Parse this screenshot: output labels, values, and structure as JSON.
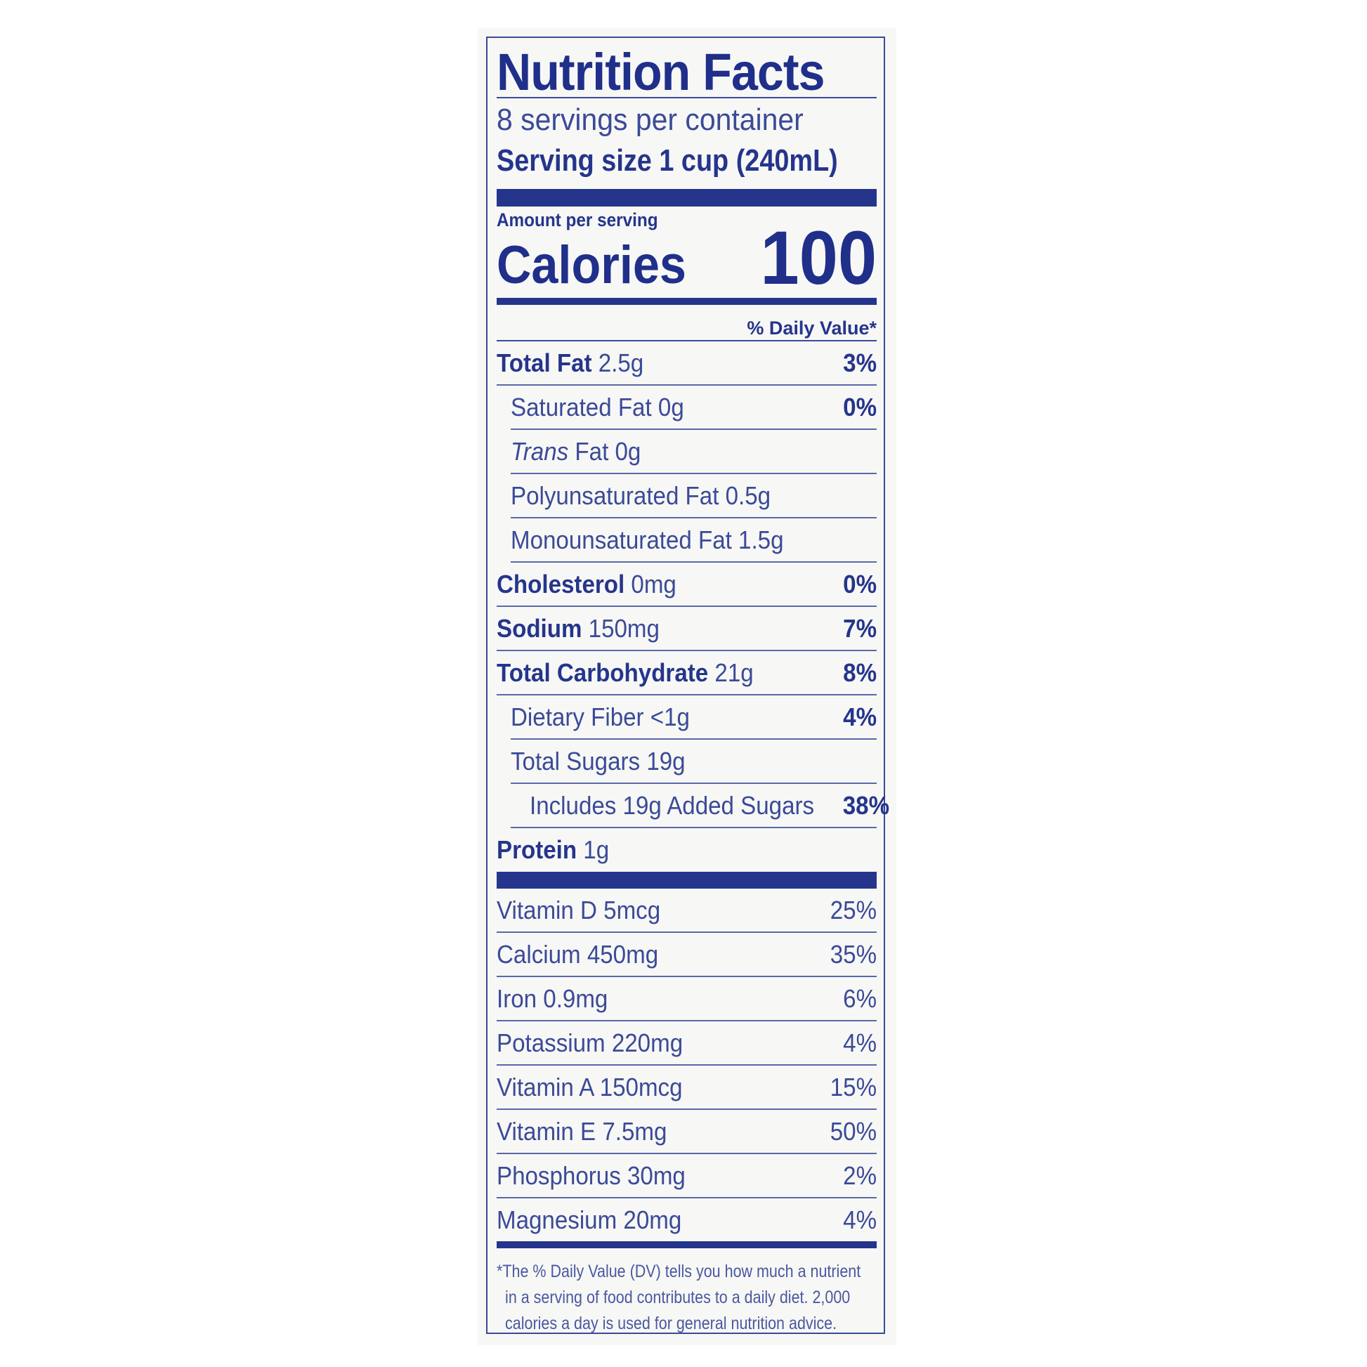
{
  "title": "Nutrition Facts",
  "servings_per_container": "8 servings per container",
  "serving_size": "Serving size 1 cup (240mL)",
  "amount_per_serving": "Amount per serving",
  "calories_label": "Calories",
  "calories_value": "100",
  "daily_value_header": "% Daily Value*",
  "nutrients": [
    {
      "name": "Total Fat",
      "amount": "2.5g",
      "dv": "3%",
      "bold": true,
      "indent": 0
    },
    {
      "name": "Saturated Fat",
      "amount": "0g",
      "dv": "0%",
      "bold": false,
      "indent": 1
    },
    {
      "name_italic": "Trans",
      "name": "Fat",
      "amount": "0g",
      "dv": "",
      "bold": false,
      "indent": 1
    },
    {
      "name": "Polyunsaturated Fat",
      "amount": "0.5g",
      "dv": "",
      "bold": false,
      "indent": 1
    },
    {
      "name": "Monounsaturated Fat",
      "amount": "1.5g",
      "dv": "",
      "bold": false,
      "indent": 1
    },
    {
      "name": "Cholesterol",
      "amount": "0mg",
      "dv": "0%",
      "bold": true,
      "indent": 0
    },
    {
      "name": "Sodium",
      "amount": "150mg",
      "dv": "7%",
      "bold": true,
      "indent": 0
    },
    {
      "name": "Total Carbohydrate",
      "amount": "21g",
      "dv": "8%",
      "bold": true,
      "indent": 0
    },
    {
      "name": "Dietary Fiber",
      "amount": "<1g",
      "dv": "4%",
      "bold": false,
      "indent": 1
    },
    {
      "name": "Total Sugars",
      "amount": "19g",
      "dv": "",
      "bold": false,
      "indent": 1
    },
    {
      "name": "Includes 19g Added Sugars",
      "amount": "",
      "dv": "38%",
      "bold": false,
      "indent": 2
    },
    {
      "name": "Protein",
      "amount": "1g",
      "dv": "",
      "bold": true,
      "indent": 0
    }
  ],
  "vitamins": [
    {
      "name": "Vitamin D",
      "amount": "5mcg",
      "dv": "25%"
    },
    {
      "name": "Calcium",
      "amount": "450mg",
      "dv": "35%"
    },
    {
      "name": "Iron",
      "amount": "0.9mg",
      "dv": "6%"
    },
    {
      "name": "Potassium",
      "amount": "220mg",
      "dv": "4%"
    },
    {
      "name": "Vitamin A",
      "amount": "150mcg",
      "dv": "15%"
    },
    {
      "name": "Vitamin E",
      "amount": "7.5mg",
      "dv": "50%"
    },
    {
      "name": "Phosphorus",
      "amount": "30mg",
      "dv": "2%"
    },
    {
      "name": "Magnesium",
      "amount": "20mg",
      "dv": "4%"
    }
  ],
  "footnote": [
    "*The % Daily Value (DV) tells you how much a nutrient",
    "in a serving of food contributes to a daily diet. 2,000",
    "calories a day is used for general nutrition advice."
  ],
  "colors": {
    "ink": "#25358c",
    "background": "#f7f7f5"
  }
}
